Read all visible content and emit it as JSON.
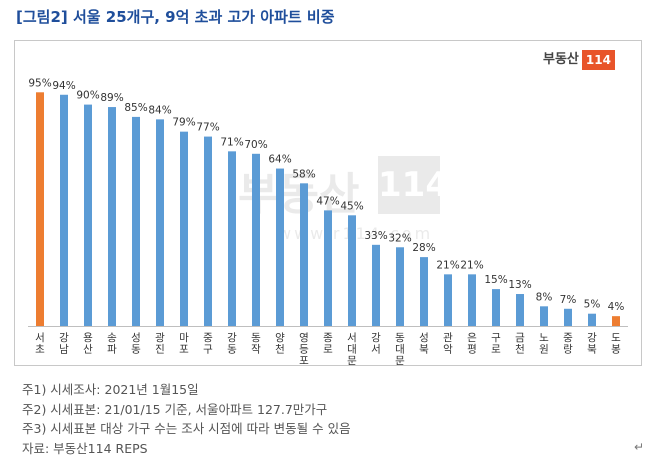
{
  "title": "[그림2] 서울 25개구, 9억 초과 고가 아파트 비중",
  "logo": {
    "text": "부동산",
    "number": "114"
  },
  "watermark": {
    "text": "부동산",
    "number": "114",
    "url": "www.r114.com"
  },
  "colors": {
    "bar": "#5b9bd5",
    "highlight": "#ed7d31",
    "title": "#1f4e9b"
  },
  "chart_data": {
    "type": "bar",
    "title": "",
    "xlabel": "",
    "ylabel": "",
    "ylim": [
      0,
      100
    ],
    "unit": "%",
    "highlighted": [
      "서초",
      "도봉"
    ],
    "categories": [
      "서초",
      "강남",
      "용산",
      "송파",
      "성동",
      "광진",
      "마포",
      "중구",
      "강동",
      "동작",
      "양천",
      "영등포",
      "종로",
      "서대문",
      "강서",
      "동대문",
      "성북",
      "관악",
      "은평",
      "구로",
      "금천",
      "노원",
      "중랑",
      "강북",
      "도봉"
    ],
    "values": [
      95,
      94,
      90,
      89,
      85,
      84,
      79,
      77,
      71,
      70,
      64,
      58,
      47,
      45,
      33,
      32,
      28,
      21,
      21,
      15,
      13,
      8,
      7,
      5,
      4
    ]
  },
  "notes": [
    "주1) 시세조사: 2021년 1월15일",
    "주2) 시세표본: 21/01/15 기준, 서울아파트 127.7만가구",
    "주3) 시세표본 대상 가구 수는 조사 시점에 따라 변동될 수 있음",
    "자료: 부동산114 REPS"
  ],
  "return_mark": "↵"
}
